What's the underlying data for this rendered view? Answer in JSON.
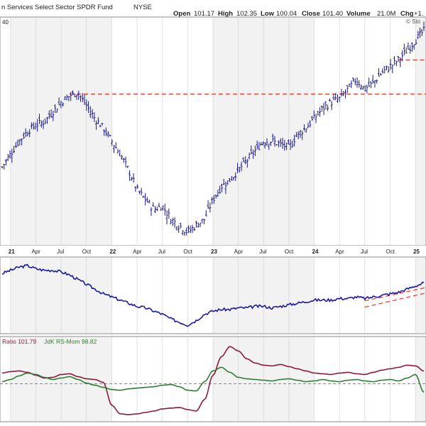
{
  "header": {
    "title": "n Services Select Sector SPDR Fund",
    "exchange": "NYSE",
    "open_label": "Open",
    "open_value": "101.17",
    "high_label": "High",
    "high_value": "102.35",
    "low_label": "Low",
    "low_value": "100.04",
    "close_label": "Close",
    "close_value": "101.40",
    "volume_label": "Volume",
    "volume_value": "21.0M",
    "chg_label": "Chg",
    "chg_value": "+1.",
    "watermark": "© Sto"
  },
  "colors": {
    "price": "#1a1a8c",
    "rs_line": "#1a1aa0",
    "rs_ratio": "#8b1a3a",
    "rs_mom": "#2e7d32",
    "resistance": "#e03020",
    "panel_bg": "#f2f2f2",
    "grid": "#cfcfcf"
  },
  "price_scale_label": "40",
  "legend": {
    "ratio": "Ratio 101.79",
    "mom": "JdK RS-Mom 98.82"
  },
  "x_axis": [
    {
      "label": "21",
      "year": true
    },
    {
      "label": "Apr",
      "year": false
    },
    {
      "label": "Jul",
      "year": false
    },
    {
      "label": "Oct",
      "year": false
    },
    {
      "label": "22",
      "year": true
    },
    {
      "label": "Apr",
      "year": false
    },
    {
      "label": "Jul",
      "year": false
    },
    {
      "label": "Oct",
      "year": false
    },
    {
      "label": "23",
      "year": true
    },
    {
      "label": "Apr",
      "year": false
    },
    {
      "label": "Jul",
      "year": false
    },
    {
      "label": "Oct",
      "year": false
    },
    {
      "label": "24",
      "year": true
    },
    {
      "label": "Apr",
      "year": false
    },
    {
      "label": "Jul",
      "year": false
    },
    {
      "label": "Oct",
      "year": false
    },
    {
      "label": "25",
      "year": true
    },
    {
      "label": "A",
      "year": false
    }
  ],
  "chart_data": [
    {
      "type": "line",
      "title": "n Services Select Sector SPDR Fund NYSE",
      "series_style": "ohlc-bars",
      "x": [
        "2020-12",
        "2021-01",
        "2021-02",
        "2021-03",
        "2021-04",
        "2021-05",
        "2021-06",
        "2021-07",
        "2021-08",
        "2021-09",
        "2021-10",
        "2021-11",
        "2021-12",
        "2022-01",
        "2022-02",
        "2022-03",
        "2022-04",
        "2022-05",
        "2022-06",
        "2022-07",
        "2022-08",
        "2022-09",
        "2022-10",
        "2022-11",
        "2022-12",
        "2023-01",
        "2023-02",
        "2023-03",
        "2023-04",
        "2023-05",
        "2023-06",
        "2023-07",
        "2023-08",
        "2023-09",
        "2023-10",
        "2023-11",
        "2023-12",
        "2024-01",
        "2024-02",
        "2024-03",
        "2024-04",
        "2024-05",
        "2024-06",
        "2024-07",
        "2024-08",
        "2024-09",
        "2024-10",
        "2024-11",
        "2024-12",
        "2025-01",
        "2025-02"
      ],
      "values": [
        62,
        66,
        70,
        73,
        75,
        76,
        79,
        82,
        84,
        85,
        81,
        77,
        74,
        70,
        66,
        61,
        55,
        52,
        49,
        50,
        46,
        44,
        42,
        44,
        46,
        52,
        56,
        58,
        61,
        64,
        67,
        70,
        70,
        69,
        68,
        72,
        74,
        77,
        80,
        82,
        83,
        86,
        89,
        86,
        88,
        91,
        93,
        95,
        98,
        101,
        104
      ],
      "annotations": [
        {
          "kind": "horizontal-line",
          "style": "dashed",
          "value": 84.5
        },
        {
          "kind": "horizontal-line",
          "style": "dashed",
          "value": 95
        }
      ]
    },
    {
      "type": "line",
      "series": [
        {
          "values": [
            0.88,
            0.9,
            0.92,
            0.93,
            0.91,
            0.9,
            0.9,
            0.89,
            0.87,
            0.84,
            0.81,
            0.78,
            0.75,
            0.73,
            0.71,
            0.69,
            0.67,
            0.66,
            0.64,
            0.62,
            0.59,
            0.57,
            0.55,
            0.58,
            0.62,
            0.64,
            0.65,
            0.65,
            0.66,
            0.66,
            0.67,
            0.67,
            0.66,
            0.67,
            0.68,
            0.69,
            0.7,
            0.71,
            0.71,
            0.71,
            0.72,
            0.72,
            0.73,
            0.72,
            0.73,
            0.74,
            0.75,
            0.76,
            0.78,
            0.8,
            0.82
          ]
        }
      ],
      "annotations": [
        {
          "kind": "trend-channel",
          "style": "dashed"
        }
      ]
    },
    {
      "type": "line",
      "series": [
        {
          "name": "Ratio 101.79",
          "values": [
            101.5,
            101.7,
            101.8,
            101.6,
            101.2,
            100.8,
            100.9,
            101.3,
            101.4,
            101.0,
            100.7,
            100.6,
            100.2,
            97.0,
            95.8,
            95.7,
            95.8,
            96.0,
            96.2,
            96.5,
            96.6,
            96.7,
            96.4,
            96.2,
            97.8,
            101.2,
            103.8,
            105.2,
            104.6,
            103.5,
            102.9,
            102.6,
            102.5,
            102.7,
            102.4,
            102.1,
            101.8,
            101.5,
            101.4,
            101.3,
            101.5,
            101.6,
            101.4,
            101.3,
            101.6,
            101.9,
            102.1,
            102.3,
            102.6,
            102.5,
            101.79
          ]
        },
        {
          "name": "JdK RS-Mom 98.82",
          "values": [
            100.3,
            100.6,
            101.1,
            101.5,
            101.3,
            100.9,
            100.6,
            100.8,
            101.0,
            100.6,
            100.1,
            99.8,
            99.5,
            99.2,
            99.1,
            99.3,
            99.4,
            99.5,
            99.6,
            99.8,
            99.9,
            99.6,
            99.1,
            99.0,
            100.3,
            101.8,
            102.3,
            101.6,
            100.9,
            100.7,
            100.6,
            100.5,
            100.4,
            100.6,
            100.7,
            100.5,
            100.3,
            100.4,
            100.6,
            100.4,
            100.3,
            100.5,
            100.6,
            100.4,
            100.3,
            100.5,
            100.6,
            100.4,
            100.8,
            101.3,
            98.82
          ]
        }
      ],
      "reference_line": 100
    }
  ]
}
